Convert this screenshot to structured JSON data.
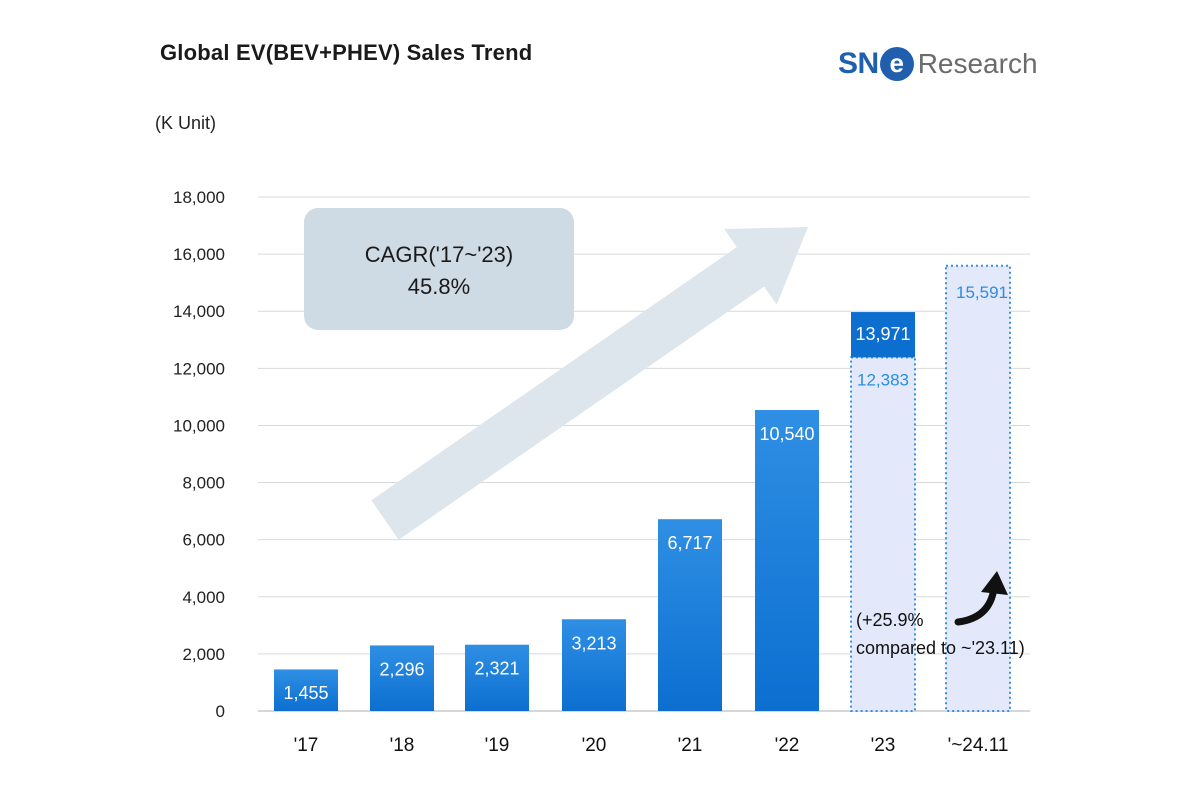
{
  "header": {
    "title": "Global EV(BEV+PHEV)  Sales Trend",
    "unit": "(K Unit)",
    "logo_sne": "SN",
    "logo_e": "e",
    "logo_research": "Research"
  },
  "cagr": {
    "line1": "CAGR('17~'23)",
    "line2": "45.8%"
  },
  "annotation": {
    "line1": "(+25.9%",
    "line2": "compared to ~'23.11)"
  },
  "colors": {
    "bar_dark": "#0c6fd0",
    "bar_light": "#2f8fe4",
    "projection_fill": "#e3e9fa",
    "projection_border": "#3a8ee0",
    "cagr_box": "#cfdbe4",
    "arrow": "#dde5ed",
    "logo_blue": "#1f5fae"
  },
  "chart_data": {
    "type": "bar",
    "title": "Global EV(BEV+PHEV)  Sales Trend",
    "ylabel": "(K Unit)",
    "ylim": [
      0,
      18000
    ],
    "yticks": [
      "0",
      "2,000",
      "4,000",
      "6,000",
      "8,000",
      "10,000",
      "12,000",
      "14,000",
      "16,000",
      "18,000"
    ],
    "categories": [
      "'17",
      "'18",
      "'19",
      "'20",
      "'21",
      "'22",
      "'23",
      "'~24.11"
    ],
    "values": [
      1455,
      2296,
      2321,
      3213,
      6717,
      10540,
      13971,
      15591
    ],
    "labels": [
      "1,455",
      "2,296",
      "2,321",
      "3,213",
      "6,717",
      "10,540",
      "13,971",
      "15,591"
    ],
    "partial": {
      "category": "'23",
      "value": 12383,
      "label": "12,383"
    },
    "grid": true
  }
}
